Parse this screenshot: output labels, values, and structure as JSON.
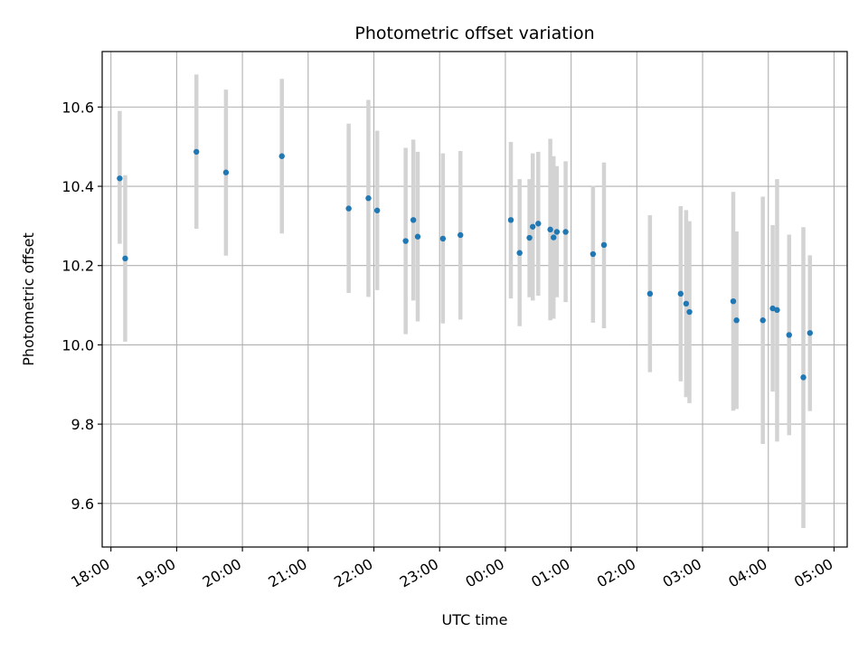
{
  "chart_data": {
    "type": "scatter",
    "title": "Photometric offset variation",
    "xlabel": "UTC time",
    "ylabel": "Photometric offset",
    "x_ticks": [
      "18:00",
      "19:00",
      "20:00",
      "21:00",
      "22:00",
      "23:00",
      "00:00",
      "01:00",
      "02:00",
      "03:00",
      "04:00",
      "05:00"
    ],
    "y_ticks": [
      "9.6",
      "9.8",
      "10.0",
      "10.2",
      "10.4",
      "10.6"
    ],
    "xlim": [
      "2023-01-01T17:52",
      "2023-01-02T05:12"
    ],
    "ylim": [
      9.49,
      10.74
    ],
    "grid": true,
    "colors": {
      "point": "#1f77b4",
      "errorbar": "#d3d3d3",
      "grid": "#b0b0b0"
    },
    "points": [
      {
        "x": "2023-01-01T18:08",
        "y": 10.42,
        "ylow": 10.255,
        "yhigh": 10.59
      },
      {
        "x": "2023-01-01T18:13",
        "y": 10.218,
        "ylow": 10.008,
        "yhigh": 10.428
      },
      {
        "x": "2023-01-01T19:18",
        "y": 10.487,
        "ylow": 10.293,
        "yhigh": 10.682
      },
      {
        "x": "2023-01-01T19:45",
        "y": 10.435,
        "ylow": 10.225,
        "yhigh": 10.644
      },
      {
        "x": "2023-01-01T20:36",
        "y": 10.476,
        "ylow": 10.281,
        "yhigh": 10.671
      },
      {
        "x": "2023-01-01T21:37",
        "y": 10.344,
        "ylow": 10.131,
        "yhigh": 10.558
      },
      {
        "x": "2023-01-01T21:55",
        "y": 10.37,
        "ylow": 10.121,
        "yhigh": 10.618
      },
      {
        "x": "2023-01-01T22:03",
        "y": 10.339,
        "ylow": 10.138,
        "yhigh": 10.54
      },
      {
        "x": "2023-01-01T22:29",
        "y": 10.262,
        "ylow": 10.027,
        "yhigh": 10.497
      },
      {
        "x": "2023-01-01T22:36",
        "y": 10.315,
        "ylow": 10.112,
        "yhigh": 10.518
      },
      {
        "x": "2023-01-01T22:40",
        "y": 10.273,
        "ylow": 10.059,
        "yhigh": 10.487
      },
      {
        "x": "2023-01-01T23:03",
        "y": 10.268,
        "ylow": 10.054,
        "yhigh": 10.483
      },
      {
        "x": "2023-01-01T23:19",
        "y": 10.277,
        "ylow": 10.064,
        "yhigh": 10.489
      },
      {
        "x": "2023-01-02T00:05",
        "y": 10.315,
        "ylow": 10.117,
        "yhigh": 10.512
      },
      {
        "x": "2023-01-02T00:13",
        "y": 10.232,
        "ylow": 10.047,
        "yhigh": 10.418
      },
      {
        "x": "2023-01-02T00:22",
        "y": 10.27,
        "ylow": 10.12,
        "yhigh": 10.418
      },
      {
        "x": "2023-01-02T00:25",
        "y": 10.298,
        "ylow": 10.112,
        "yhigh": 10.483
      },
      {
        "x": "2023-01-02T00:30",
        "y": 10.306,
        "ylow": 10.124,
        "yhigh": 10.487
      },
      {
        "x": "2023-01-02T00:41",
        "y": 10.291,
        "ylow": 10.062,
        "yhigh": 10.52
      },
      {
        "x": "2023-01-02T00:44",
        "y": 10.271,
        "ylow": 10.066,
        "yhigh": 10.476
      },
      {
        "x": "2023-01-02T00:47",
        "y": 10.285,
        "ylow": 10.12,
        "yhigh": 10.451
      },
      {
        "x": "2023-01-02T00:55",
        "y": 10.285,
        "ylow": 10.108,
        "yhigh": 10.463
      },
      {
        "x": "2023-01-02T01:20",
        "y": 10.229,
        "ylow": 10.056,
        "yhigh": 10.401
      },
      {
        "x": "2023-01-02T01:30",
        "y": 10.252,
        "ylow": 10.042,
        "yhigh": 10.46
      },
      {
        "x": "2023-01-02T02:12",
        "y": 10.129,
        "ylow": 9.931,
        "yhigh": 10.327
      },
      {
        "x": "2023-01-02T02:40",
        "y": 10.129,
        "ylow": 9.908,
        "yhigh": 10.35
      },
      {
        "x": "2023-01-02T02:45",
        "y": 10.104,
        "ylow": 9.868,
        "yhigh": 10.34
      },
      {
        "x": "2023-01-02T02:48",
        "y": 10.083,
        "ylow": 9.853,
        "yhigh": 10.312
      },
      {
        "x": "2023-01-02T03:28",
        "y": 10.11,
        "ylow": 9.834,
        "yhigh": 10.386
      },
      {
        "x": "2023-01-02T03:31",
        "y": 10.062,
        "ylow": 9.838,
        "yhigh": 10.286
      },
      {
        "x": "2023-01-02T03:55",
        "y": 10.062,
        "ylow": 9.75,
        "yhigh": 10.374
      },
      {
        "x": "2023-01-02T04:04",
        "y": 10.092,
        "ylow": 9.882,
        "yhigh": 10.302
      },
      {
        "x": "2023-01-02T04:08",
        "y": 10.088,
        "ylow": 9.756,
        "yhigh": 10.418
      },
      {
        "x": "2023-01-02T04:19",
        "y": 10.025,
        "ylow": 9.772,
        "yhigh": 10.278
      },
      {
        "x": "2023-01-02T04:32",
        "y": 9.918,
        "ylow": 9.538,
        "yhigh": 10.297
      },
      {
        "x": "2023-01-02T04:38",
        "y": 10.03,
        "ylow": 9.833,
        "yhigh": 10.226
      }
    ]
  }
}
